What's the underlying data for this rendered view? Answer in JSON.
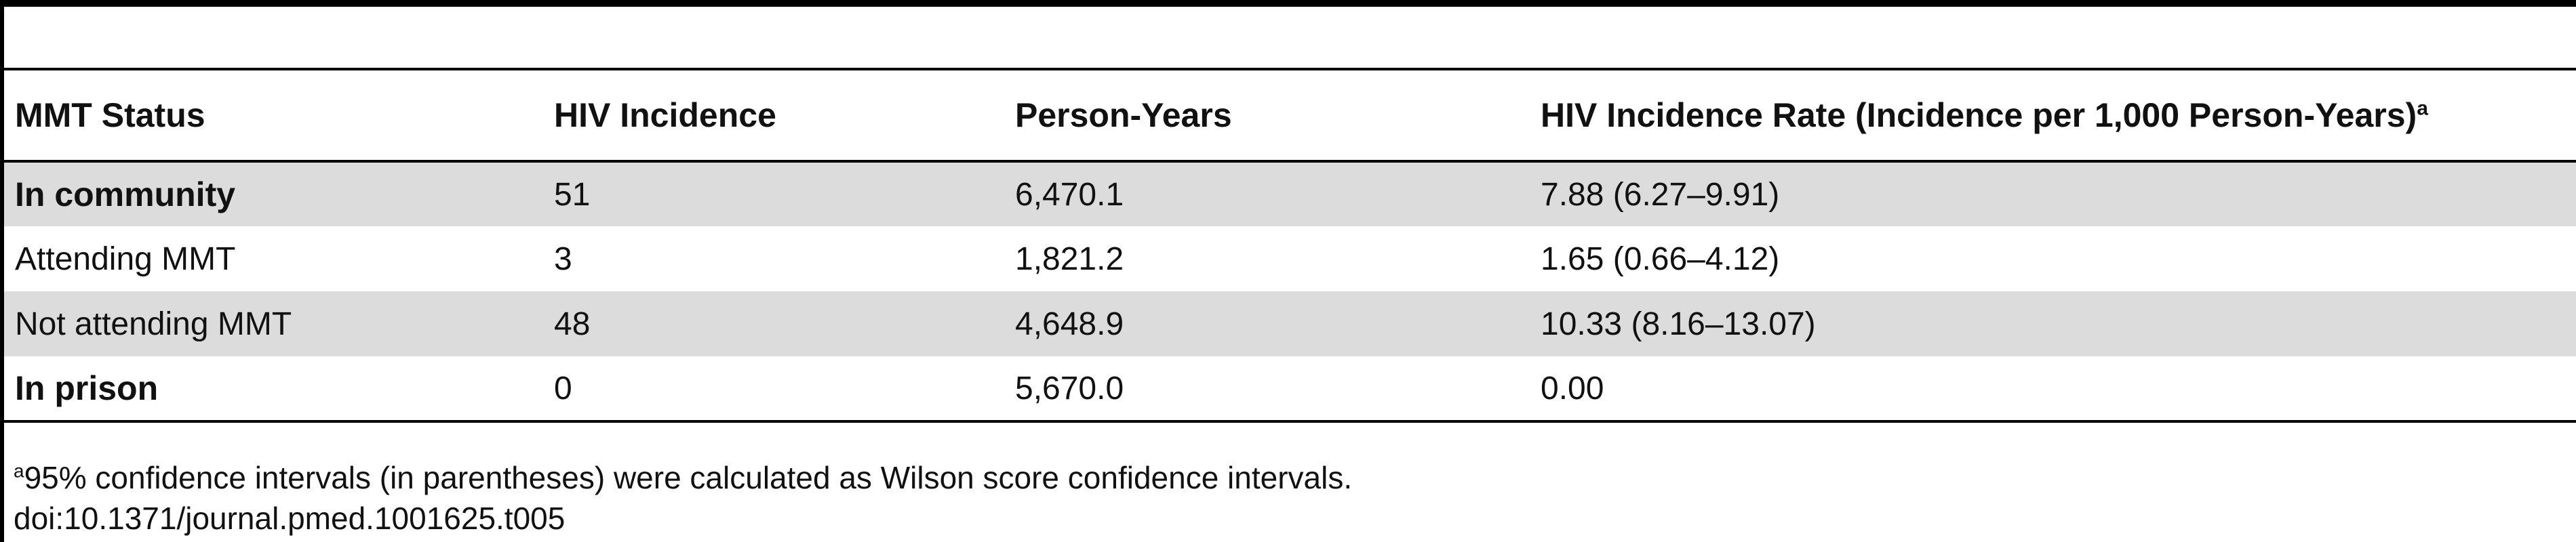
{
  "table": {
    "headers": [
      "MMT Status",
      "HIV Incidence",
      "Person-Years",
      "HIV Incidence Rate (Incidence per 1,000 Person-Years)"
    ],
    "header_superscript": "a",
    "rows": [
      {
        "status": "In community",
        "incidence": "51",
        "person_years": "6,470.1",
        "rate": "7.88 (6.27–9.91)"
      },
      {
        "status": "Attending MMT",
        "incidence": "3",
        "person_years": "1,821.2",
        "rate": "1.65 (0.66–4.12)"
      },
      {
        "status": "Not attending MMT",
        "incidence": "48",
        "person_years": "4,648.9",
        "rate": "10.33 (8.16–13.07)"
      },
      {
        "status": "In prison",
        "incidence": "0",
        "person_years": "5,670.0",
        "rate": "0.00"
      }
    ]
  },
  "footnote": {
    "marker": "a",
    "text": "95% confidence intervals (in parentheses) were calculated as Wilson score confidence intervals.",
    "doi": "doi:10.1371/journal.pmed.1001625.t005"
  }
}
